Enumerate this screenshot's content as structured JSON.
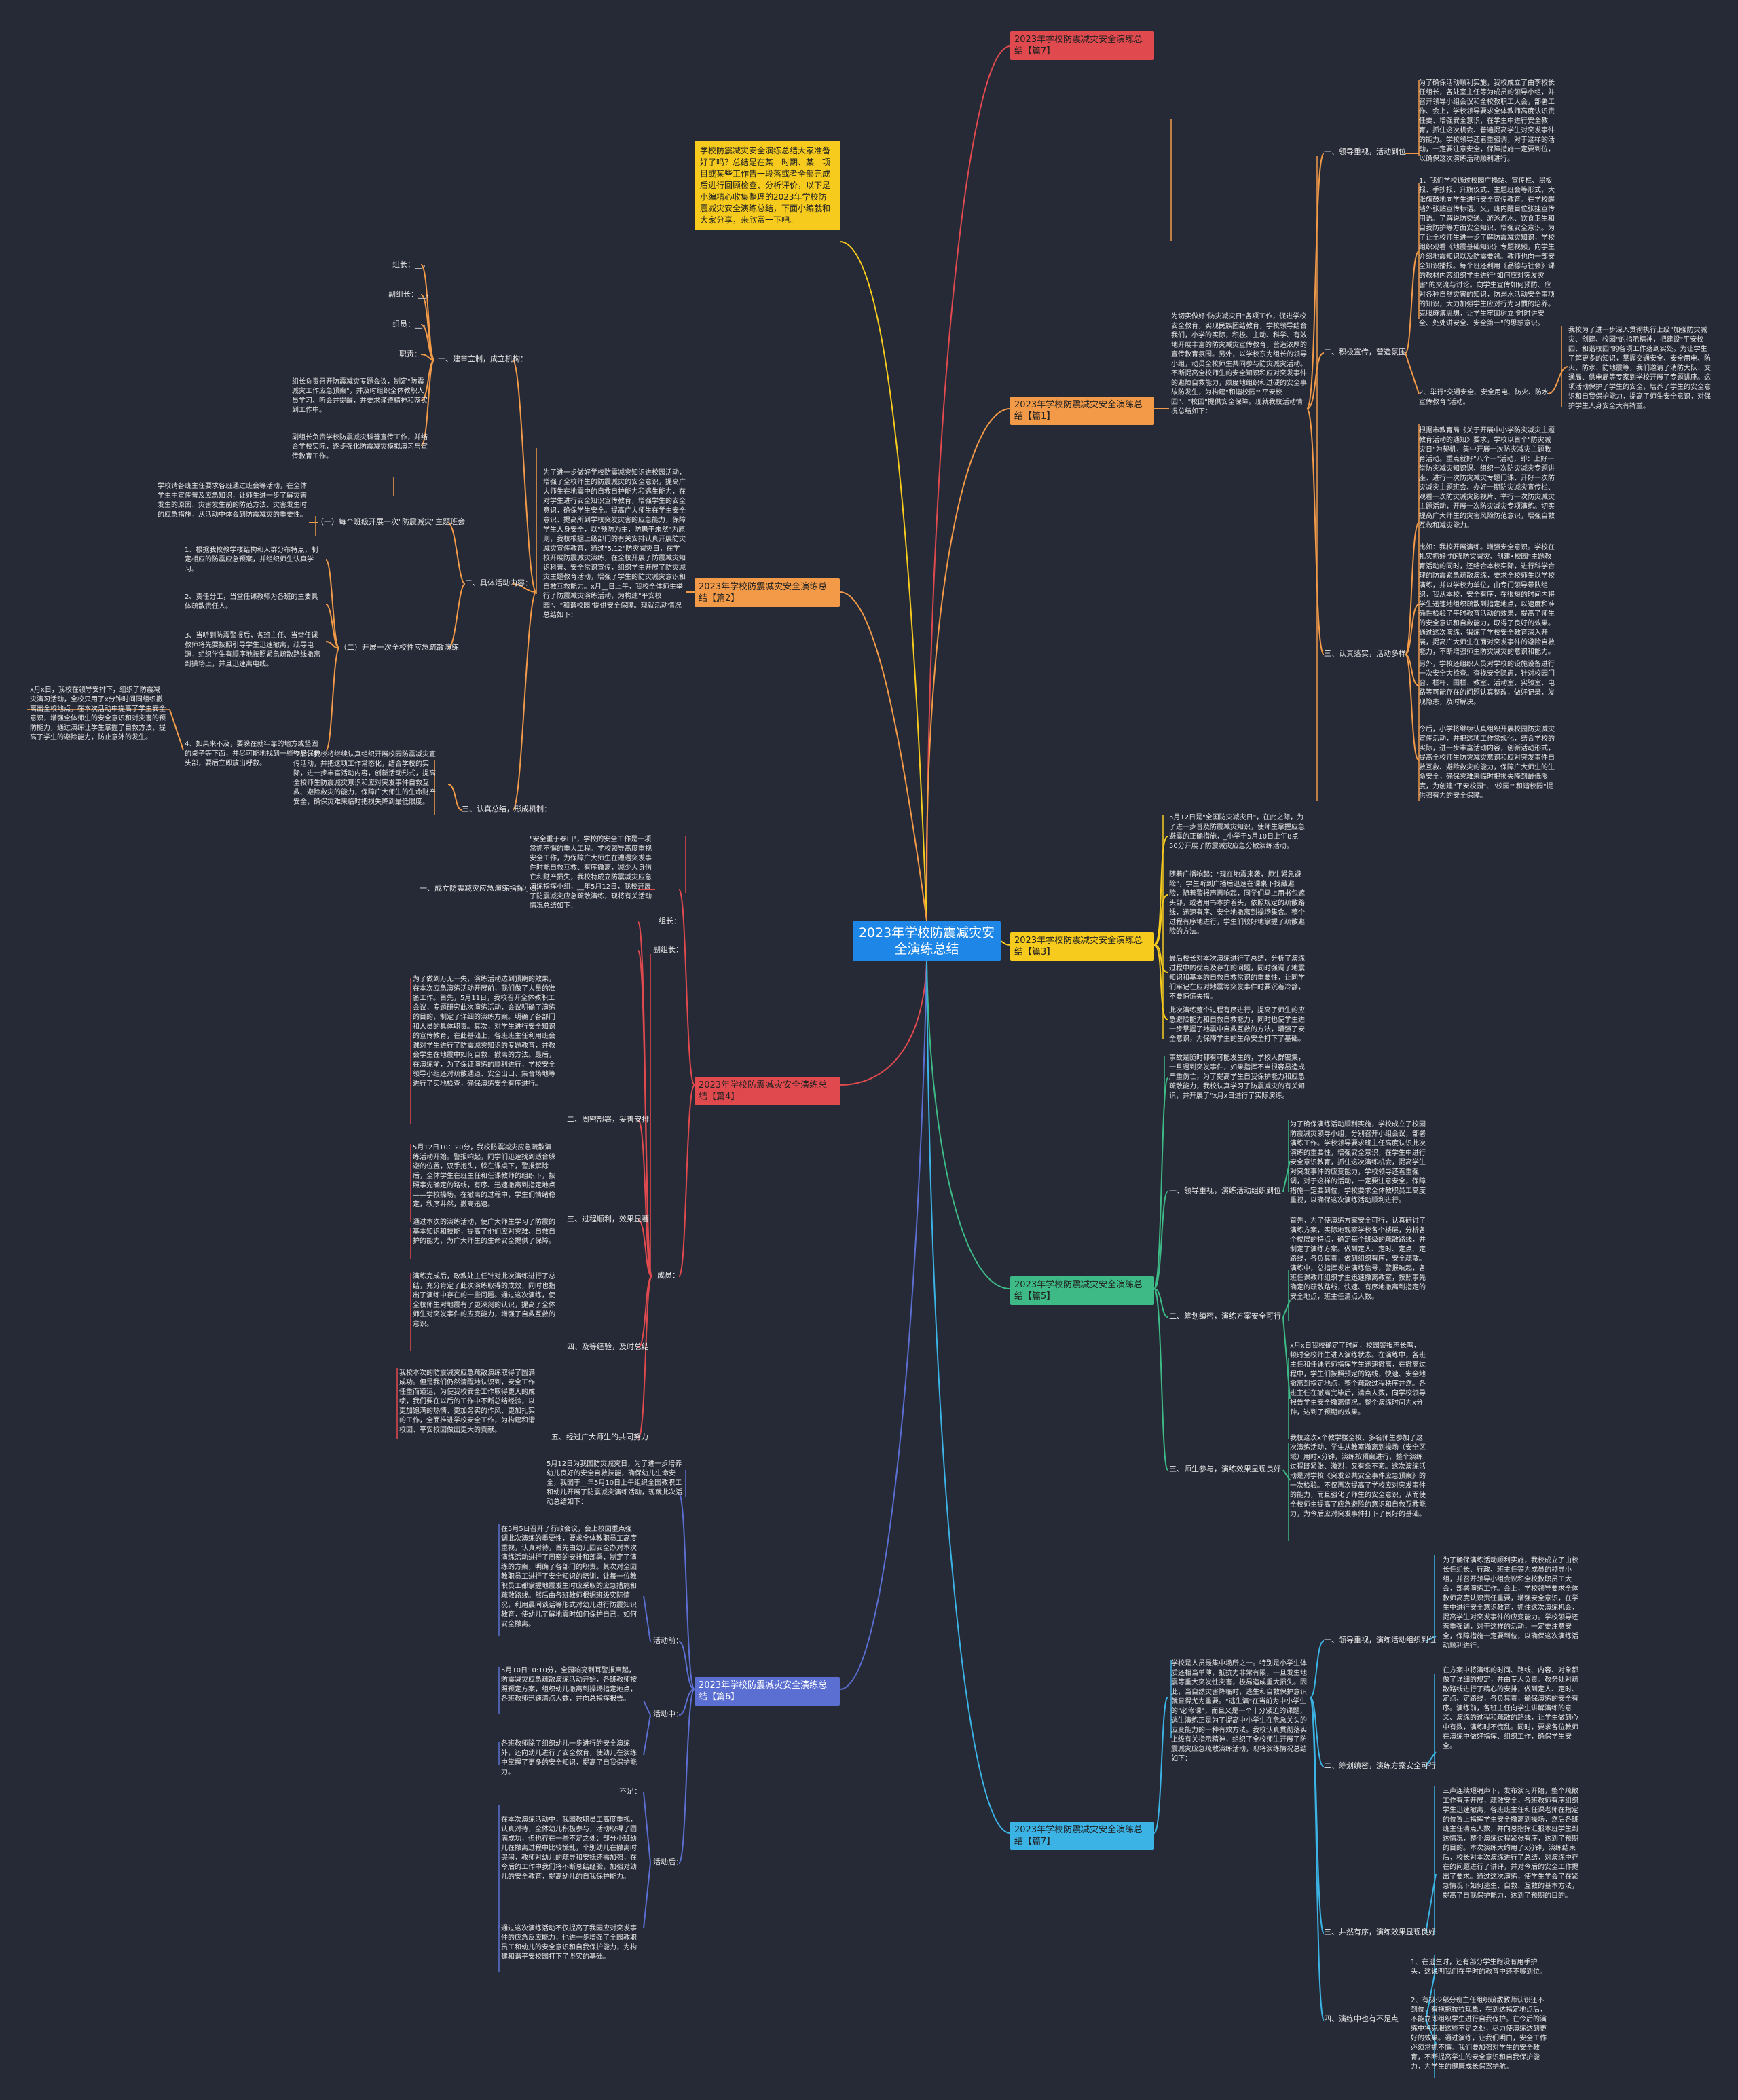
{
  "root": {
    "title": "2023年学校防震减灾安全演练总结"
  },
  "intro": "学校防震减灾安全演练总结大家准备好了吗？总结是在某一时期、某一项目或某些工作告一段落或者全部完成后进行回顾检查、分析评价，以下是小编精心收集整理的2023年学校防震减灾安全演练总结，下面小编就和大家分享，来欣赏一下吧。",
  "branches": {
    "b7": {
      "label": "2023年学校防震减灾安全演练总结【篇7】",
      "lead": "学校是人员最集中场所之一。特别是小学生体质还相当单薄，抵抗力非常有限，一旦发生地震等重大突发性灾害，极易造成重大损失。因此，当自然灾害降临时，逃生和自救保护意识就显得尤为重要。\"逃生演\"在当前为中小学生的\"必修课\"，而且又是一个十分紧迫的课题，逃生演练正是为了提高中小学生在危急关头的应变能力的一种有效方法。我校认真贯彻落实上级有关指示精神，组织了全校师生开展了防震减灾应急疏散演练活动，现将演练情况总结如下：",
      "s1": "一、领导重视，演练活动组织到位",
      "s1t": "为了确保演练活动顺利实施，我校成立了由校长任组长、行政、班主任等为成员的领导小组，并召开领导小组会议和全校教职员工大会，部署演练工作。会上，学校领导要求全体教师高度认识责任重要，增强安全意识，在学生中进行安全意识教育，抓住这次演练机会，提高学生对突发事件的应变能力。学校领导还着重强调，对于这样的活动，一定要注意安全，保障措施一定要到位，以确保这次演练活动顺利进行。",
      "s2": "二、筹划缜密，演练方案安全可行",
      "s2t": "在方案中将演练的时间、路线、内容、对象都做了详细的规定，并由专人负责。教务处对疏散路线进行了精心的安排，做到定人、定时、定点、定路线，各负其责，确保演练的安全有序。演练前，各班主任向学生讲解演练的意义、演练的过程和疏散的路线，让学生做到心中有数，演练时不慌乱。同时，要求各位教师在演练中做好指挥、组织工作，确保学生安全。",
      "s3": "三、井然有序，演练效果显现良好",
      "s3t": "三声连续短哨声下，发布演习开始，整个疏散工作有序开展，疏散安全，各班教师有序组织学生迅速撤离，各班班主任和任课老师在指定的位置上指挥学生安全撤离到操场，然后各班班主任清点人数，并向总指挥汇报本班学生到达情况，整个演练过程紧张有序，达到了预期的目的。本次演练大约用了x分钟，演练结束后，校长对本次演练进行了总结，对演练中存在的问题进行了讲评，并对今后的安全工作提出了要求。通过这次演练，使学生学会了在紧急情况下如何逃生、自救、互救的基本方法，提高了自我保护能力，达到了预期的目的。",
      "s4": "四、演练中也有不足点",
      "s4t1": "1、在逃生时，还有部分学生跑没有用手护头，这说明我们在平时的教育中还不够到位。",
      "s4t2": "2、有极少部分班主任组织疏散教师认识还不到位，有拖拖拉拉现象，在到达指定地点后，不能立即组织学生进行自我保护。在今后的演练中将克服这些不足之处，尽力使演练达到更好的效果。通过演练，让我们明白，安全工作必须常抓不懈。我们要加强对学生的安全教育，不断提高学生的安全意识和自我保护能力，为学生的健康成长保驾护航。"
    },
    "b1": {
      "label": "2023年学校防震减灾安全演练总结【篇1】",
      "lead": "为切实做好\"防灾减灾日\"各项工作，促进学校安全教育，实现民族团结教育，学校领导结合我们，小学的实际，积极、主动、科学、有效地开展丰富的防灾减灾宣传教育，营造浓厚的宣传教育氛围。另外，以学校东为组长的领导小组，动员全校师生共同参与防灾减灾活动。不断提高全校师生的安全知识和应对突发事件的避险自救能力，颇度地组织和过硬的安全事故防发生，为构建\"和谐校园\"\"平安校园\"、\"校园\"提供安全保障。现就我校活动情况总结如下：",
      "s1": "一、领导重视，活动到位",
      "s1t": "为了确保活动顺利实施，我校成立了由李校长任组长，各处室主任等为成员的领导小组，并召开领导小组会议和全校教职工大会，部署工作、会上，学校领导要求全体教师高度认识责任要、增强安全意识，在学生中进行安全教育，抓住这次机会、普遍提高学生对突发事件的能力。学校领导还着重强调，对于这样的活动，一定要注意安全，保障措施一定要到位，以确保这次演练活动顺利进行。",
      "s2": "二、积极宣传，营造氛围",
      "s2t1": "1、我们学校通过校园广播站、宣传栏、黑板报、手抄报、升旗仪式、主题班会等形式，大张旗鼓地向学生进行安全宣传教育。在学校醒墙外张贴宣传标语。又，班内醒目位张挂宣传用语。了解说防交通、游泳游水、饮食卫生和自我防护等方面安全知识、增强安全意识。为了让全校师生进一步了解防震减灾知识，学校组织观看《地震基础知识》专题视频，向学生介绍地震知识以及防震要领。教师也向一部安全知识播报。每个班还利用《品德与社会》课的教材内容组织学生进行\"如何应对突发灾害\"的交流与讨论。向学生宣传如何预防、应对各种自然灾害的知识，防溺水活动安全事项的知识，大力加强学生应对行为习惯的培养。克服麻痹思想，让学生牢固树立\"时时讲安全、处处讲安全、安全第一\"的思想意识。",
      "s2t2": "2、举行\"交通安全、安全用电、防火、防水宣传教育\"活动。",
      "s2t3": "我校为了进一步深入贯彻执行上级\"加强防灾减灾、创建、校园\"的指示精神，把建设\"平安校园、和谐校园\"的各项工作落到实处。为让学生了解更多的知识，掌握交通安全、安全用电、防火、防水、防地震等，我们邀请了消防大队、交通局、供电局等专家到学校开展了专题讲座。这项活动保护了学生的安全，培养了学生的安全意识和自我保护能力，提高了师生安全意识，对保护学生人身安全大有裨益。",
      "s3": "三、认真落实，活动多样",
      "s3t1": "根据市教育局《关于开展中小学防灾减灾主题教育活动的通知》要求，学校以首个\"防灾减灾日\"为契机，集中开展一次防灾减灾主题教育活动。重点就好\"八个一\"活动，即：上好一堂防灾减灾知识课、组织一次防灾减灾专题讲座、进行一次防灾减灾专题门课、开好一次防灾减灾主题班会、办好一期防灾减灾宣传栏、观看一次防灾减灾影视片、举行一次防灾减灾主题活动，开展一次防灾减灾专项演练。切实提高广大师生的灾害风险防范意识，增强自救互救和减灾能力。",
      "s3t2": "比如：我校开展演练。增强安全意识。学校在扎实抓好\"加强防灾减灾、创建•校园\"主题教育活动的同时，还结合本校实际，进行科学合理的防震紧急疏散演练，要求全校师生以学校演练，并以学校为单位，由专门领导带队组织，我从本校，安全有序，在很短的时间内将学生迅速地组织疏散到指定地点，以速度和准确性检验了平时教育活动的效果，提高了师生的安全意识和自救能力，取得了良好的效果。通过这次演练，锻炼了学校安全教育深入开展，提高广大师生在面对突发事件的避险自救能力，不断增强师生防灾减灾的意识和能力。",
      "s3t3": "另外，学校还组织人员对学校的设施设备进行一次安全大检查。查找安全隐患，针对校园门窗、栏杆、围栏、教室、活动室、实验室、电路等可能存在的问题认真整改，做好记录，发现隐患，及时解决。",
      "s3t4": "今后，小学将继续认真组织开展校园防灾减灾宣传活动，并把这项工作常规化，结合学校的实际，进一步丰富活动内容，创新活动形式，提高全校师生防灾减灾意识和应对突发事件自救互救、避险救灾的能力，保障广大师生的生命安全，确保灾难来临时把损失降到最低限度，为创建\"平安校园\"、\"校园\"\"和谐校园\"提供强有力的安全保障。"
    },
    "b2": {
      "label": "2023年学校防震减灾安全演练总结【篇2】",
      "lead": "为了进一步做好学校防震减灾知识进校园活动，增强了全校师生的防震减灾的安全意识，提高广大师生在地震中的自救自护能力和逃生能力，在对学生进行安全知识宣传教育，增强学生的安全意识，确保学生安全。提高广大师生在学生安全意识、提高所到学校突发灾害的应急能力，保障学生人身安全，以\"预防为主，防患于未然\"为原则，我校根据上级部门的有关安排认真开展防灾减灾宣传教育，通过\"5.12\"防灾减灾日，在学校开展防震减灾演练，在全校开展了防震减灾知识科普、安全常识宣传，组织学生开展了防灾减灾主题教育活动，增强了学生的防灾减灾意识和自救互救能力。x月__日上午，我校全体师生举行了防震减灾演练活动，为构建\"平安校园\"、\"和谐校园\"提供安全保障。现就活动情况总结如下：",
      "s1": "一、建章立制，成立机构：",
      "s1items": [
        "组长：__，",
        "副组长：__，",
        "组员：__，",
        "职责："
      ],
      "s1t1": "组长负责召开防震减灾专题会议，制定\"防震减灾工作应急预案\"，并及时组织全体教职人员学习、听会并提醒，并要求谨遵精神和落实到工作中。",
      "s1t2": "副组长负责学校防震减灾科普宣传工作，并结合学校实际，逐步强化防震减灾模拟演习与宣传教育工作。",
      "s2": "二、具体活动内容：",
      "s2a": "（一）每个班级开展一次\"防震减灾\"主题班会",
      "s2at": "学校请各班主任要求各班通过班会等活动，在全体学生中宣传普及应急知识，让师生进一步了解灾害发生的原因、灾害发生前的防范方法、灾害发生时的应急措施，从活动中体会到防震减灾的重要性。",
      "s2b": "（二）开展一次全校性应急疏散演练",
      "s2bt1": "1、根据我校教学楼结构和人群分布特点，制定相应的防震应急预案，并组织师生认真学习。",
      "s2bt2": "2、责任分工，当堂任课教师为各班的主要具体疏散责任人。",
      "s2bt3": "3、当听到防震警报后，各班主任、当堂任课教师将先要按照引导学生迅速撤离，疏导电源，组织学生有顺序地按照紧急疏散路线撤离到操场上，并且迅速离电线。",
      "s2bt4": "4、如果来不及，要躲在就牢靠的地方或坚固的桌子等下面，并尽可能地找到一些物品保护头部，要后立即放出呼救。",
      "s2bt5": "x月x日，我校在领导安排下，组织了防震减灾演习活动，全校只用了x分钟时间同组织撤离出全校地点，在本次活动中提高了学生安全意识，增强全体师生的安全意识和对灾害的预防能力，通过演练让学生掌握了自救方法，提高了学生的避险能力，防止意外的发生。",
      "s3": "三、认真总结，形成机制：",
      "s3t": "今后，我校将继续认真组织开展校园防震减灾宣传活动，并把这项工作常态化，结合学校的实际，进一步丰富活动内容，创新活动形式，提高全校师生防震减灾意识和应对突发事件自救互救、避险救灾的能力，保障广大师生的生命财产安全，确保灾难来临时把损失降到最低限度。"
    },
    "b3": {
      "label": "2023年学校防震减灾安全演练总结【篇3】",
      "t1": "5月12日是\"全国防灾减灾日\"，在此之际，为了进一步普及防震减灾知识，使师生掌握应急避震的正确措施，_小学于5月10日上午8点50分开展了防震减灾应急分散演练活动。",
      "t2": "随着广播响起：\"现在地震来袭，师生紧急避险\"，学生听到广播后迅速在课桌下找藏避险，随着警报声再响起，同学们马上用书包遮头部，或者用书本护着头，依照规定的疏散路线，迅速有序、安全地撤离到操场集合。整个过程有序地进行，学生们较好地掌握了疏散避险的方法。",
      "t3": "最后校长对本次演练进行了总结，分析了演练过程中的优点及存在的问题，同时强调了地震知识和基本的自救自救常识的重要性，让同学们牢记在应对地震等突发事件时要沉着冷静，不要惊慌失措。",
      "t4": "此次演练整个过程有序进行，提高了师生的应急避险能力和自救自救能力，同时也使学生进一步掌握了地震中自救互救的方法，增强了安全意识，为保障学生的生命安全打下了基础。"
    },
    "b4": {
      "label": "2023年学校防震减灾安全演练总结【篇4】",
      "s1": "一、成立防震减灾应急演练指挥小组",
      "s1t": "\"安全重于泰山\"，学校的安全工作是一项常抓不懈的重大工程。学校领导高度重视安全工作，为保障广大师生在遭遇突发事件时能自救互救、有序撤离，减少人身伤亡和财产损失，我校特成立防震减灾应急演练指挥小组，__年5月12日，我校开展了防震减灾应急疏散演练，现将有关活动情况总结如下：",
      "s1items": [
        "组长：",
        "副组长："
      ],
      "s2": "成员：",
      "s2a": "二、周密部署，妥善安排",
      "s2at": "为了做到万无一失，演练活动达到预期的效果，在本次应急演练活动开展前，我们做了大量的准备工作。首先，5月11日，我校召开全体教职工会议，专题研究此次演练活动，会议明确了演练的目的，制定了详细的演练方案。明确了各部门和人员的具体职责。其次，对学生进行安全知识的宣传教育，在此基础上，各班班主任利用班会课对学生进行了防震减灾知识的专题教育，并教会学生在地震中如何自救、撤离的方法。最后，在演练前，为了保证演练的顺利进行，学校安全领导小组还对疏散通道、安全出口、集合场地等进行了实地检查，确保演练安全有序进行。",
      "s2b": "三、过程顺利，效果显著",
      "s2bt1": "5月12日10：20分，我校防震减灾应急疏散演练活动开始。警报响起，同学们迅速找到适合躲避的位置，双手抱头，躲在课桌下，警报解除后，全体学生在班主任和任课教师的组织下，按照事先确定的路线，有序、迅速撤离到指定地点——学校操场。在撤离的过程中，学生们情绪稳定，秩序井然，撤离迅速。",
      "s2bt2": "通过本次的演练活动，使广大师生学习了防震的基本知识和技能，提高了他们应对灾难、自救自护的能力，为广大师生的生命安全提供了保障。",
      "s2c": "四、及等经验，及时总结",
      "s2ct": "演练完成后，政教处主任针对此次演练进行了总结，充分肯定了此次演练取得的成效，同时也指出了演练中存在的一些问题。通过这次演练，使全校师生对地震有了更深刻的认识，提高了全体师生对突发事件的应变能力，增强了自救互救的意识。",
      "s2d": "五、经过广大师生的共同努力",
      "s2dt": "我校本次的防震减灾应急疏散演练取得了圆满成功。但是我们仍然清醒地认识到，安全工作任重而道远，为使我校安全工作取得更大的成绩，我们要在以后的工作中不断总结经验，以更加饱满的热情、更加务实的作风、更加扎实的工作，全面推进学校安全工作，为构建和谐校园、平安校园做出更大的贡献。"
    },
    "b5": {
      "label": "2023年学校防震减灾安全演练总结【篇5】",
      "lead": "事故是随时都有可能发生的，学校人群密集，一旦遇到突发事件，如果指挥不当很容易造成严重伤亡，为了提高学生自我保护能力和应急疏散能力，我校认真学习了防震减灾的有关知识，并开展了\"x月x日进行了实际演练。",
      "s1": "一、领导重视，演练活动组织到位",
      "s1t": "为了确保演练活动顺利实施，学校成立了校园防震减灾领导小组，分别召开小组会议，部署演练工作。学校领导要求班主任高度认识此次演练的重要性，增强安全意识，在学生中进行安全意识教育，抓住这次演练机会，提高学生对突发事件的应变能力，学校领导还着重强调，对于这样的活动，一定要注意安全，保障措施一定要到位，学校要求全体教职员工高度重视，以确保这次演练活动顺利进行。",
      "s2": "二、筹划缜密，演练方案安全可行",
      "s2t": "首先，为了使演练方案安全可行，认真研讨了演练方案，实际地观察学校各个楼层，分析各个楼层的特点，确定每个班级的疏散路线，并制定了演练方案。做到定人、定时、定点、定路线，各负其责，做到组织有序，安全疏散。演练中，总指挥发出演练信号，警报响起，各班任课教师组织学生迅速撤离教室，按照事先确定的疏散路线，快速、有序地撤离到指定的安全地点，班主任清点人数。",
      "s2t2": "x月x日我校确定了时间，校园警报声长鸣，顿时全校师生进入演练状态。在演练中，各班主任和任课老师指挥学生迅速撤离，在撤离过程中，学生们按照预定的路线，快速、安全地撤离到指定地点，整个疏散过程秩序井然。各班主任在撤离完毕后，清点人数，向学校领导报告学生安全撤离情况。整个演练时间为x分钟，达到了预期的效果。",
      "s3": "三、师生参与，演练效果显现良好",
      "s3t": "我校这次x个教学楼全校、多名师生参加了这次演练活动，学生从教室撤离到操场（安全区域）用时x分钟，演练按预案进行，整个演练过程既紧张、激烈，又有条不紊。这次演练活动是对学校《突发公共安全事件应急预案》的一次检验。不仅再次提高了学校应对突发事件的能力，而且强化了师生的安全意识，从而使全校师生提高了应急避险的意识和自救互救能力，为今后应对突发事件打下了良好的基础。"
    },
    "b6": {
      "label": "2023年学校防震减灾安全演练总结【篇6】",
      "lead": "5月12日为我国防灾减灾日，为了进一步培养幼儿良好的安全自救技能，确保幼儿生命安全，我园于__年5月10日上午组织全园教职工和幼儿开展了防震减灾演练活动，现就此次活动总结如下：",
      "s1": "活动前：",
      "s1t": "在5月5日召开了行政会议，会上校园重点强调此次演练的重要性，要求全体教职员工高度重视，认真对待，首先由幼儿园安全办对本次演练活动进行了周密的安排和部署，制定了演练的方案，明确了各部门的职责。其次对全园教职员工进行了安全知识的培训，让每一位教职员工都掌握地震发生时应采取的应急措施和疏散路线。然后由各班教师根据班级实际情况，利用晨间谈话等形式对幼儿进行防震知识教育，使幼儿了解地震时如何保护自己，如何安全撤离。",
      "s2": "活动中：",
      "s2t": "5月10日10:10分，全园响亮刺耳警报声起，防震减灾应急疏散演练活动开始，各班教师按照预定方案，组织幼儿撤离到操场指定地点，各班教师迅速清点人数，并向总指挥报告。",
      "s2t2": "各班教师除了组织幼儿一步进行的安全演练外，还向幼儿进行了安全教育，使幼儿在演练中掌握了更多的安全知识，提高了自我保护能力。",
      "s3": "活动后：",
      "s3a": "不足：",
      "s3t": "在本次演练活动中，我园教职员工高度重视，认真对待，全体幼儿积极参与，活动取得了圆满成功，但也存在一些不足之处：部分小班幼儿在撤离过程中比较慌乱，个别幼儿在撤离时哭闹，教师对幼儿的疏导和安抚还需加强，在今后的工作中我们将不断总结经验，加强对幼儿的安全教育，提高幼儿的自我保护能力。",
      "s3t2": "通过这次演练活动不仅提高了我园应对突发事件的应急反应能力，也进一步增强了全园教职员工和幼儿的安全意识和自我保护能力，为构建和谐平安校园打下了坚实的基础。"
    }
  },
  "colors": {
    "red": "#e04a4f",
    "orange": "#f29a48",
    "yellow": "#f6cb1e",
    "green": "#3dba86",
    "blue": "#3bb3e5",
    "indigo": "#5a6fd1",
    "root": "#1d86e6",
    "bg": "#262a36"
  }
}
